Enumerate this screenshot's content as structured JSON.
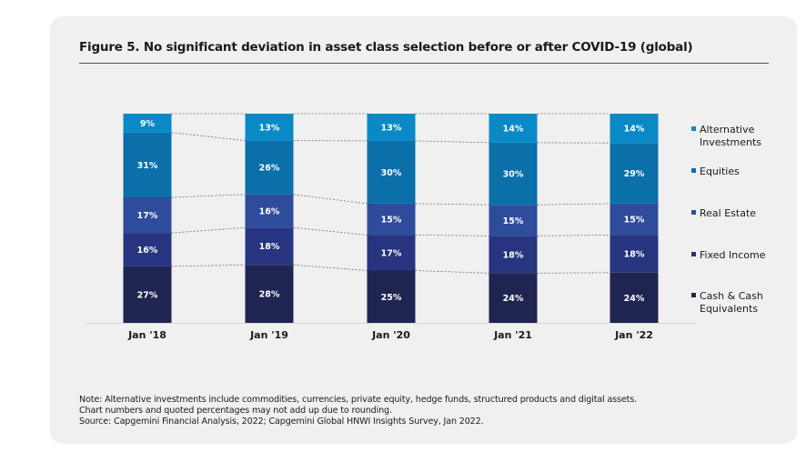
{
  "title": "Figure 5. No significant deviation in asset class selection before or after COVID-19 (global)",
  "notes": [
    "Note: Alternative investments include commodities, currencies, private equity, hedge funds, structured products and digital assets.",
    "Chart numbers and quoted percentages may not add up due to rounding.",
    "Source: Capgemini Financial Analysis, 2022; Capgemini Global HNWI Insights Survey, Jan 2022."
  ],
  "chart_data": {
    "type": "bar",
    "stacked": true,
    "normalized": true,
    "title": "Figure 5. No significant deviation in asset class selection before or after COVID-19 (global)",
    "xlabel": "",
    "ylabel": "",
    "unit": "%",
    "categories": [
      "Jan '18",
      "Jan '19",
      "Jan '20",
      "Jan '21",
      "Jan '22"
    ],
    "series": [
      {
        "name": "Cash & Cash Equivalents",
        "legend_lines": [
          "Cash & Cash",
          "Equivalents"
        ],
        "color": "#1f2550",
        "values": [
          27,
          28,
          25,
          24,
          24
        ]
      },
      {
        "name": "Fixed Income",
        "legend_lines": [
          "Fixed Income"
        ],
        "color": "#27347f",
        "values": [
          16,
          18,
          17,
          18,
          18
        ]
      },
      {
        "name": "Real Estate",
        "legend_lines": [
          "Real Estate"
        ],
        "color": "#2f4b9c",
        "values": [
          17,
          16,
          15,
          15,
          15
        ]
      },
      {
        "name": "Equities",
        "legend_lines": [
          "Equities"
        ],
        "color": "#0b6faa",
        "values": [
          31,
          26,
          30,
          30,
          29
        ]
      },
      {
        "name": "Alternative Investments",
        "legend_lines": [
          "Alternative",
          "Investments"
        ],
        "color": "#0a89c7",
        "values": [
          9,
          13,
          13,
          14,
          14
        ]
      }
    ],
    "data_labels": true,
    "connector_lines": "dashed",
    "legend": "right",
    "grid": false
  }
}
